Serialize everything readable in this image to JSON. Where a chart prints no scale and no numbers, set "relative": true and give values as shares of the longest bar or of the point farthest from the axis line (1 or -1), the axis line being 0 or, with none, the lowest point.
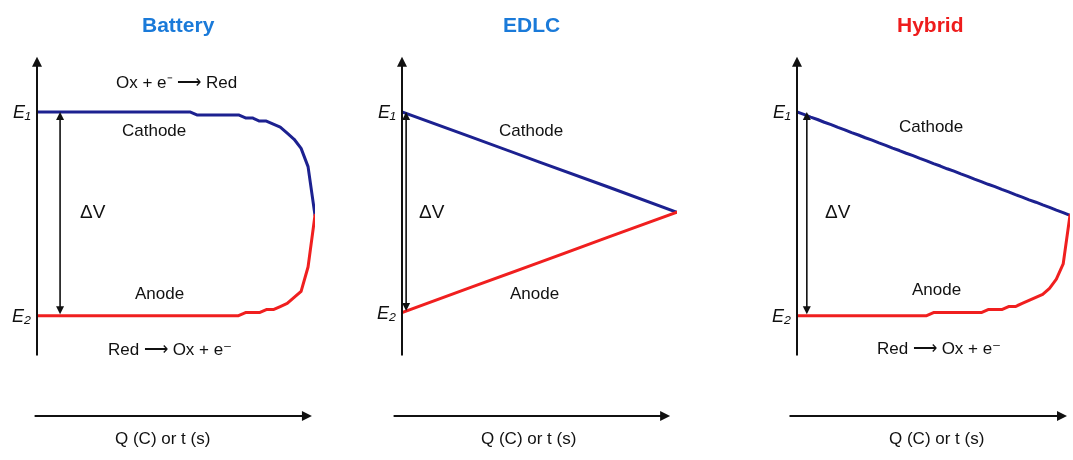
{
  "chart_data": [
    {
      "type": "line",
      "title": "Battery",
      "xlabel": "Q (C) or t (s)",
      "relative": true,
      "categories": [
        null,
        null,
        null,
        null,
        null,
        null,
        null,
        null,
        null,
        null,
        null,
        null,
        null,
        null,
        null,
        null,
        null,
        null,
        null,
        null,
        null,
        null,
        null,
        null,
        null,
        null,
        null,
        null,
        null,
        null,
        null,
        null,
        null,
        null,
        null,
        null,
        null,
        null,
        null,
        null,
        null
      ],
      "series": [
        {
          "name": "Cathode",
          "color": "#1c2190",
          "values": [
            1.0,
            1.0,
            1.0,
            1.0,
            1.0,
            1.0,
            1.0,
            1.0,
            1.0,
            1.0,
            1.0,
            1.0,
            1.0,
            1.0,
            1.0,
            1.0,
            1.0,
            1.0,
            1.0,
            1.0,
            1.0,
            1.0,
            1.0,
            0.99,
            0.99,
            0.99,
            0.99,
            0.99,
            0.99,
            0.99,
            0.98,
            0.98,
            0.97,
            0.97,
            0.96,
            0.95,
            0.93,
            0.91,
            0.88,
            0.82,
            0.66
          ]
        },
        {
          "name": "Anode",
          "color": "#f01f1f",
          "values": [
            0.33,
            0.33,
            0.33,
            0.33,
            0.33,
            0.33,
            0.33,
            0.33,
            0.33,
            0.33,
            0.33,
            0.33,
            0.33,
            0.33,
            0.33,
            0.33,
            0.33,
            0.33,
            0.33,
            0.33,
            0.33,
            0.33,
            0.33,
            0.33,
            0.33,
            0.33,
            0.33,
            0.33,
            0.33,
            0.33,
            0.34,
            0.34,
            0.34,
            0.35,
            0.35,
            0.36,
            0.37,
            0.39,
            0.41,
            0.49,
            0.66
          ]
        }
      ],
      "annotations": [
        "E₁",
        "E₂",
        "Ox + e⁻ ⟶ Red",
        "ΔV",
        "Red ⟶ Ox + e⁻"
      ]
    },
    {
      "type": "line",
      "title": "EDLC",
      "xlabel": "Q (C) or t (s)",
      "relative": true,
      "categories": [
        null,
        null,
        null,
        null,
        null
      ],
      "series": [
        {
          "name": "Cathode",
          "color": "#1c2190",
          "values": [
            1.0,
            0.918,
            0.835,
            0.753,
            0.67
          ]
        },
        {
          "name": "Anode",
          "color": "#f01f1f",
          "values": [
            0.34,
            0.423,
            0.505,
            0.588,
            0.67
          ]
        }
      ],
      "annotations": [
        "E₁",
        "E₂",
        "ΔV"
      ]
    },
    {
      "type": "line",
      "title": "Hybrid",
      "xlabel": "Q (C) or t (s)",
      "relative": true,
      "categories": [
        null,
        null,
        null,
        null,
        null,
        null,
        null,
        null,
        null,
        null,
        null,
        null,
        null,
        null,
        null,
        null,
        null,
        null,
        null,
        null,
        null,
        null,
        null,
        null,
        null,
        null,
        null,
        null,
        null,
        null,
        null,
        null,
        null,
        null,
        null,
        null,
        null,
        null,
        null,
        null,
        null
      ],
      "series": [
        {
          "name": "Cathode",
          "color": "#1c2190",
          "values": [
            1.0,
            0.992,
            0.983,
            0.975,
            0.966,
            0.958,
            0.949,
            0.941,
            0.932,
            0.924,
            0.915,
            0.907,
            0.898,
            0.89,
            0.881,
            0.873,
            0.864,
            0.856,
            0.847,
            0.839,
            0.83,
            0.822,
            0.813,
            0.805,
            0.796,
            0.788,
            0.779,
            0.771,
            0.762,
            0.754,
            0.745,
            0.737,
            0.728,
            0.72,
            0.711,
            0.703,
            0.694,
            0.686,
            0.677,
            0.669,
            0.66
          ]
        },
        {
          "name": "Anode",
          "color": "#f01f1f",
          "values": [
            0.33,
            0.33,
            0.33,
            0.33,
            0.33,
            0.33,
            0.33,
            0.33,
            0.33,
            0.33,
            0.33,
            0.33,
            0.33,
            0.33,
            0.33,
            0.33,
            0.33,
            0.33,
            0.33,
            0.33,
            0.34,
            0.34,
            0.34,
            0.34,
            0.34,
            0.34,
            0.34,
            0.34,
            0.35,
            0.35,
            0.35,
            0.36,
            0.36,
            0.37,
            0.38,
            0.39,
            0.4,
            0.42,
            0.45,
            0.5,
            0.66
          ]
        }
      ],
      "annotations": [
        "E₁",
        "E₂",
        "ΔV",
        "Red ⟶ Ox + e⁻"
      ]
    }
  ]
}
